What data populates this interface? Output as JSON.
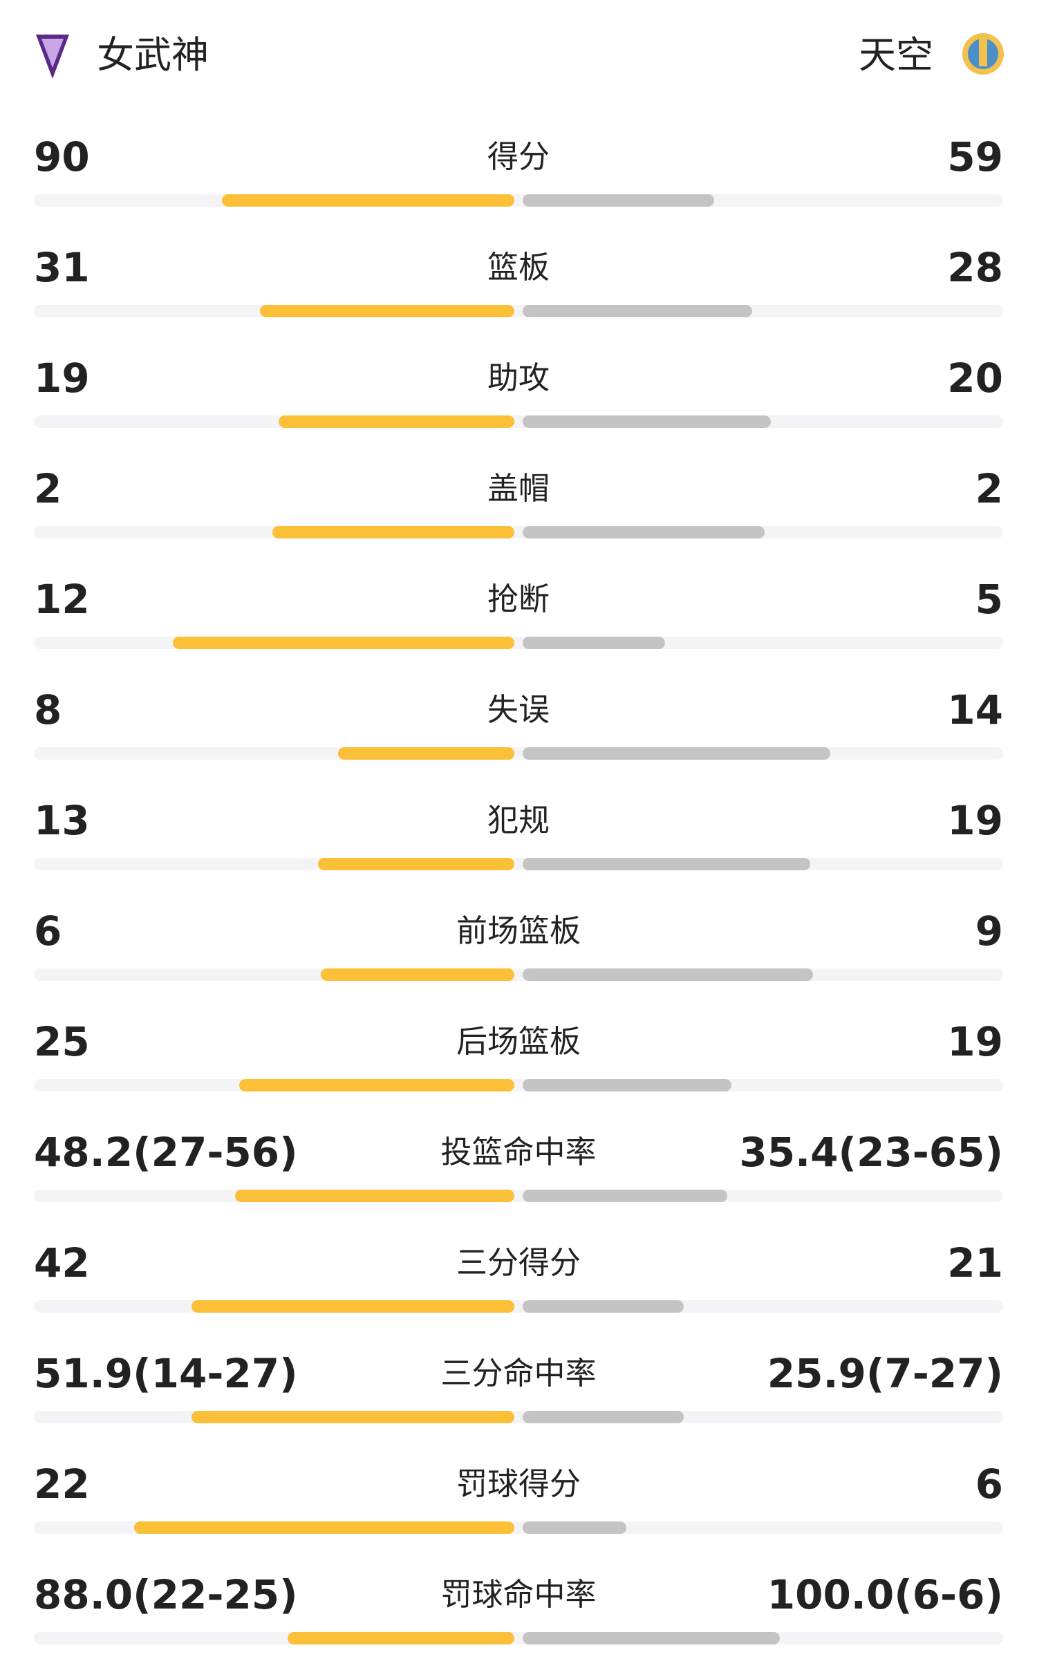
{
  "header": {
    "home": "女武神",
    "away": "天空"
  },
  "stats": [
    {
      "name": "得分",
      "home": 90,
      "away": 59
    },
    {
      "name": "篮板",
      "home": 31,
      "away": 28
    },
    {
      "name": "助攻",
      "home": 19,
      "away": 20
    },
    {
      "name": "盖帽",
      "home": 2,
      "away": 2
    },
    {
      "name": "抢断",
      "home": 12,
      "away": 5
    },
    {
      "name": "失误",
      "home": 8,
      "away": 14
    },
    {
      "name": "犯规",
      "home": 13,
      "away": 19
    },
    {
      "name": "前场篮板",
      "home": 6,
      "away": 9
    },
    {
      "name": "后场篮板",
      "home": 25,
      "away": 19
    },
    {
      "name": "投篮命中率",
      "home": {
        "value": 48.2,
        "label": "48.2(27-56)"
      },
      "away": {
        "value": 35.4,
        "label": "35.4(23-65)"
      }
    },
    {
      "name": "三分得分",
      "home": 42,
      "away": 21
    },
    {
      "name": "三分命中率",
      "home": {
        "value": 51.9,
        "label": "51.9(14-27)"
      },
      "away": {
        "value": 25.9,
        "label": "25.9(7-27)"
      }
    },
    {
      "name": "罚球得分",
      "home": 22,
      "away": 6
    },
    {
      "name": "罚球命中率",
      "home": {
        "value": 88.0,
        "label": "88.0(22-25)"
      },
      "away": {
        "value": 100.0,
        "label": "100.0(6-6)"
      }
    }
  ],
  "colors": {
    "home": "#fbbf38",
    "away": "#c4c4c4",
    "track": "#f4f4f6"
  }
}
